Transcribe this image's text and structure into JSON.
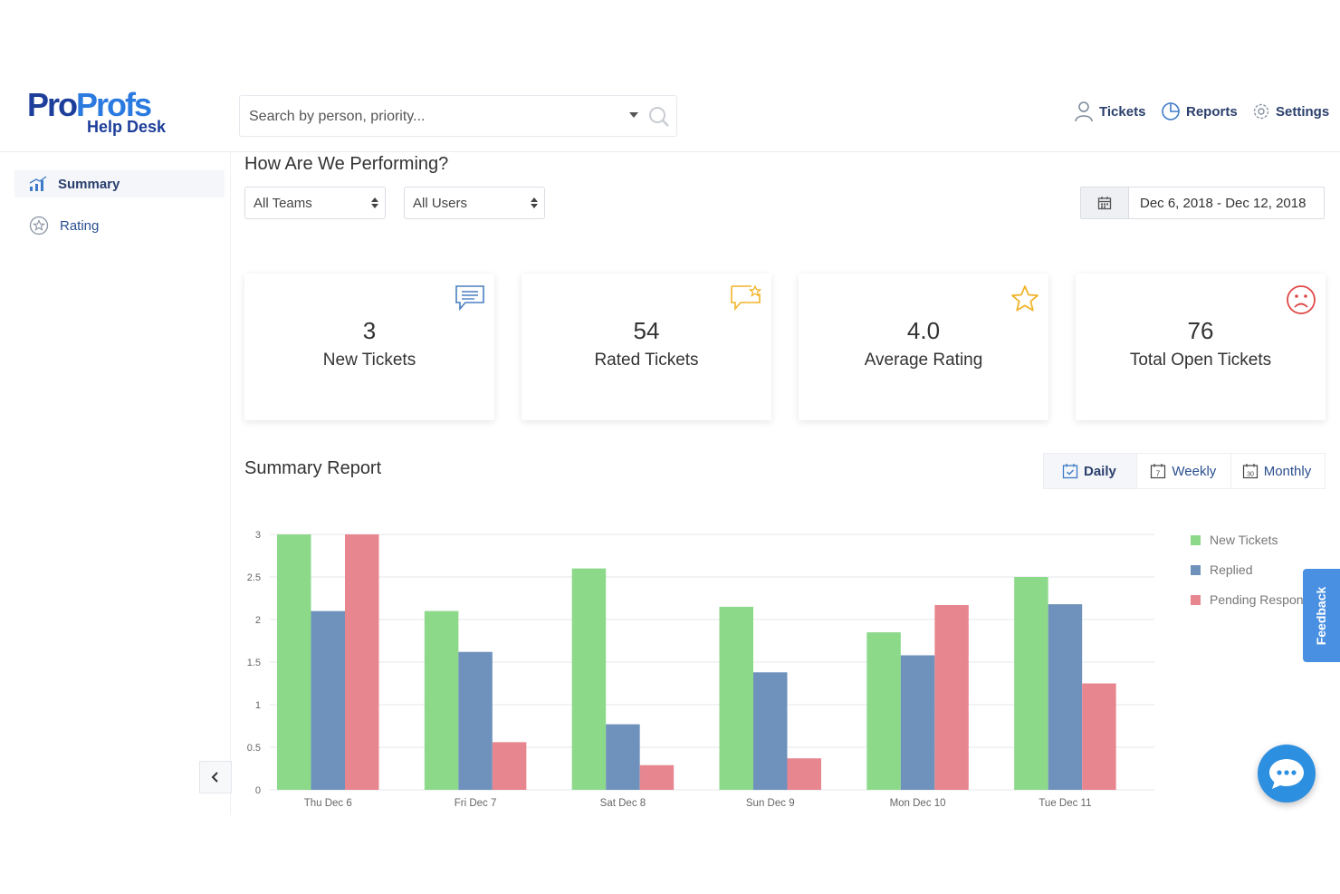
{
  "header": {
    "logo": {
      "brand_pro": "Pro",
      "brand_profs": "Profs",
      "sub": "Help Desk"
    },
    "search": {
      "placeholder": "Search by person, priority..."
    },
    "nav": [
      {
        "label": "Tickets",
        "icon": "user-icon"
      },
      {
        "label": "Reports",
        "icon": "pie-chart-icon"
      },
      {
        "label": "Settings",
        "icon": "gear-icon"
      }
    ]
  },
  "sidebar": {
    "items": [
      {
        "label": "Summary",
        "icon": "bar-chart-icon",
        "active": true
      },
      {
        "label": "Rating",
        "icon": "star-circle-icon",
        "active": false
      }
    ]
  },
  "main": {
    "title": "How Are We Performing?",
    "filters": {
      "team": "All Teams",
      "user": "All Users"
    },
    "date_range": "Dec 6, 2018 - Dec 12, 2018",
    "kpis": [
      {
        "value": "3",
        "label": "New Tickets",
        "icon": "message-icon",
        "color": "#4a7fc1"
      },
      {
        "value": "54",
        "label": "Rated Tickets",
        "icon": "rated-message-icon",
        "color": "#f0b429"
      },
      {
        "value": "4.0",
        "label": "Average Rating",
        "icon": "star-icon",
        "color": "#f0b429"
      },
      {
        "value": "76",
        "label": "Total Open Tickets",
        "icon": "sad-face-icon",
        "color": "#e04848"
      }
    ],
    "report_title": "Summary Report",
    "periods": [
      {
        "label": "Daily",
        "icon": "calendar-check-icon",
        "active": true
      },
      {
        "label": "Weekly",
        "icon": "calendar-7-icon",
        "active": false
      },
      {
        "label": "Monthly",
        "icon": "calendar-30-icon",
        "active": false
      }
    ]
  },
  "chart_data": {
    "type": "bar",
    "categories": [
      "Thu Dec 6",
      "Fri Dec 7",
      "Sat Dec 8",
      "Sun Dec 9",
      "Mon Dec 10",
      "Tue Dec 11"
    ],
    "series": [
      {
        "name": "New Tickets",
        "color": "#8cd98a",
        "values": [
          3.0,
          2.1,
          2.6,
          2.15,
          1.85,
          2.5
        ]
      },
      {
        "name": "Replied",
        "color": "#6f92bd",
        "values": [
          2.1,
          1.62,
          0.77,
          1.38,
          1.58,
          2.18
        ]
      },
      {
        "name": "Pending Respon",
        "color": "#e8868f",
        "values": [
          3.0,
          0.56,
          0.29,
          0.37,
          2.17,
          1.25
        ]
      }
    ],
    "yticks": [
      "0",
      "0.5",
      "1",
      "1.5",
      "2",
      "2.5",
      "3"
    ],
    "ylim": [
      0,
      3
    ],
    "grid": true,
    "legend_position": "right"
  },
  "widgets": {
    "feedback": "Feedback",
    "chat_icon": "chat-bubble-icon"
  }
}
